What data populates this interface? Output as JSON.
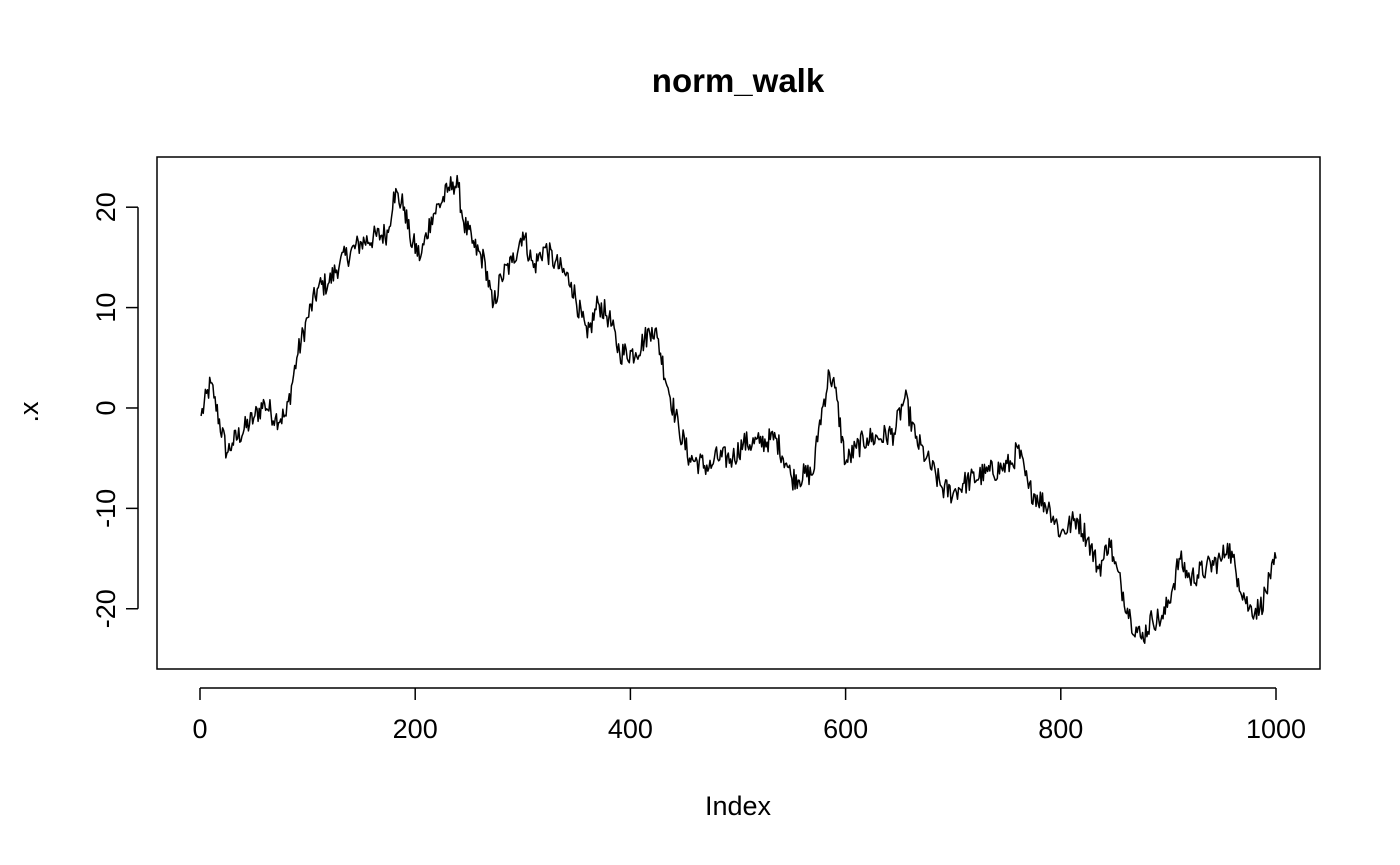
{
  "chart_data": {
    "type": "line",
    "title": "norm_walk",
    "xlabel": "Index",
    "ylabel": ".x",
    "xlim": [
      0,
      1000
    ],
    "ylim": [
      -26,
      25
    ],
    "x_ticks": [
      {
        "value": 0,
        "label": "0"
      },
      {
        "value": 200,
        "label": "200"
      },
      {
        "value": 400,
        "label": "400"
      },
      {
        "value": 600,
        "label": "600"
      },
      {
        "value": 800,
        "label": "800"
      },
      {
        "value": 1000,
        "label": "1000"
      }
    ],
    "y_ticks": [
      {
        "value": -20,
        "label": "-20"
      },
      {
        "value": -10,
        "label": "-10"
      },
      {
        "value": 0,
        "label": "0"
      },
      {
        "value": 10,
        "label": "10"
      },
      {
        "value": 20,
        "label": "20"
      }
    ],
    "grid": false,
    "line_color": "#000000",
    "series": [
      {
        "x": [
          1,
          10,
          13,
          25,
          30,
          50,
          60,
          70,
          80,
          90,
          100,
          110,
          120,
          130,
          150,
          175,
          180,
          190,
          195,
          205,
          215,
          230,
          235,
          240,
          245,
          255,
          265,
          272,
          280,
          290,
          300,
          310,
          320,
          330,
          345,
          360,
          370,
          380,
          390,
          405,
          420,
          425,
          435,
          445,
          455,
          475,
          478,
          495,
          505,
          520,
          535,
          545,
          550,
          570,
          575,
          585,
          590,
          600,
          610,
          620,
          630,
          645,
          655,
          665,
          675,
          690,
          700,
          710,
          730,
          745,
          755,
          760,
          770,
          790,
          800,
          815,
          825,
          835,
          840,
          845,
          850,
          865,
          875,
          885,
          895,
          905,
          910,
          920,
          935,
          950,
          955,
          965,
          975,
          985,
          995,
          1000
        ],
        "values": [
          -0.8,
          2.5,
          1.0,
          -4.5,
          -3.5,
          -1.0,
          0.5,
          -1.0,
          -0.8,
          5.0,
          9.0,
          12.0,
          12.5,
          14.5,
          16.5,
          17.5,
          21.5,
          20.0,
          17.0,
          15.0,
          19.0,
          21.5,
          22.5,
          22.0,
          18.5,
          16.0,
          14.5,
          10.0,
          13.0,
          14.5,
          17.5,
          14.0,
          16.0,
          14.5,
          12.5,
          7.0,
          10.5,
          9.0,
          5.5,
          5.5,
          8.0,
          7.0,
          2.0,
          -2.0,
          -5.0,
          -6.0,
          -5.0,
          -5.0,
          -3.5,
          -3.5,
          -3.0,
          -5.5,
          -7.0,
          -6.5,
          -2.0,
          3.5,
          2.0,
          -5.5,
          -4.0,
          -3.0,
          -3.0,
          -2.5,
          1.0,
          -3.0,
          -5.0,
          -8.0,
          -8.5,
          -7.5,
          -6.5,
          -6.0,
          -5.5,
          -4.0,
          -8.0,
          -10.0,
          -12.5,
          -11.0,
          -13.0,
          -16.0,
          -15.0,
          -13.0,
          -15.5,
          -21.0,
          -23.0,
          -21.0,
          -21.0,
          -17.5,
          -15.0,
          -17.0,
          -16.0,
          -15.0,
          -13.5,
          -17.0,
          -20.0,
          -20.0,
          -17.0,
          -15.0
        ]
      }
    ]
  }
}
